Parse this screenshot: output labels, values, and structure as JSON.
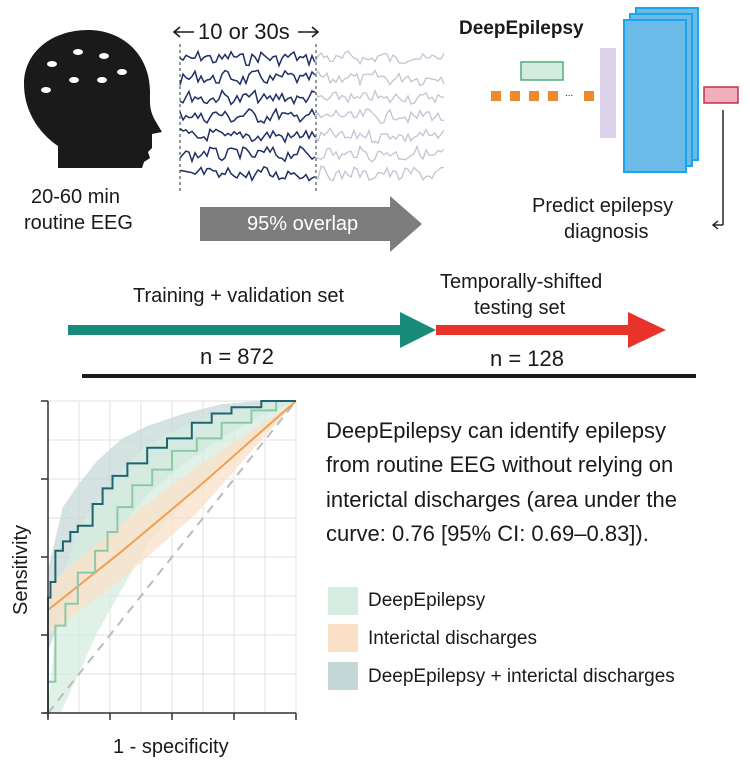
{
  "eeg": {
    "duration_label": "10 or 30s",
    "overlap_label": "95% overlap"
  },
  "head": {
    "caption_line1": "20-60 min",
    "caption_line2": "routine EEG"
  },
  "model": {
    "title": "DeepEpilepsy",
    "ellipsis": "...",
    "output_line1": "Predict epilepsy",
    "output_line2": "diagnosis"
  },
  "datasets": {
    "train_label": "Training + validation set",
    "test_label_line1": "Temporally-shifted",
    "test_label_line2": "testing set",
    "train_n": "n = 872",
    "test_n": "n = 128",
    "train_color": "#178a79",
    "test_color": "#e8332a"
  },
  "summary": {
    "line1": "DeepEpilepsy can identify epilepsy",
    "line2": "from routine EEG without relying on",
    "line3": "interictal discharges (area under the",
    "line4": "curve: 0.76 [95% CI: 0.69–0.83])."
  },
  "chart_data": {
    "type": "line",
    "title": "",
    "xlabel": "1 - specificity",
    "ylabel": "Sensitivity",
    "xlim": [
      0,
      1
    ],
    "ylim": [
      0,
      1
    ],
    "grid": true,
    "legend_position": "right",
    "series": [
      {
        "name": "DeepEpilepsy",
        "color": "#8cc9a6",
        "band_color": "#d5ede0",
        "points": [
          [
            0,
            0
          ],
          [
            0,
            0.1
          ],
          [
            0.03,
            0.1
          ],
          [
            0.03,
            0.28
          ],
          [
            0.07,
            0.28
          ],
          [
            0.07,
            0.35
          ],
          [
            0.12,
            0.35
          ],
          [
            0.12,
            0.45
          ],
          [
            0.19,
            0.45
          ],
          [
            0.19,
            0.52
          ],
          [
            0.24,
            0.52
          ],
          [
            0.24,
            0.58
          ],
          [
            0.28,
            0.58
          ],
          [
            0.28,
            0.66
          ],
          [
            0.34,
            0.66
          ],
          [
            0.34,
            0.73
          ],
          [
            0.42,
            0.73
          ],
          [
            0.42,
            0.78
          ],
          [
            0.5,
            0.78
          ],
          [
            0.5,
            0.84
          ],
          [
            0.6,
            0.84
          ],
          [
            0.6,
            0.88
          ],
          [
            0.7,
            0.88
          ],
          [
            0.7,
            0.93
          ],
          [
            0.82,
            0.93
          ],
          [
            0.82,
            0.97
          ],
          [
            0.92,
            0.97
          ],
          [
            0.92,
            1.0
          ],
          [
            1,
            1
          ]
        ],
        "upper": [
          [
            0,
            0.02
          ],
          [
            0.05,
            0.42
          ],
          [
            0.12,
            0.58
          ],
          [
            0.2,
            0.68
          ],
          [
            0.3,
            0.78
          ],
          [
            0.4,
            0.86
          ],
          [
            0.55,
            0.92
          ],
          [
            0.7,
            0.96
          ],
          [
            0.85,
            0.99
          ],
          [
            1,
            1
          ]
        ],
        "lower": [
          [
            0,
            0
          ],
          [
            0.05,
            0.0
          ],
          [
            0.12,
            0.12
          ],
          [
            0.2,
            0.26
          ],
          [
            0.3,
            0.4
          ],
          [
            0.4,
            0.54
          ],
          [
            0.55,
            0.68
          ],
          [
            0.7,
            0.8
          ],
          [
            0.85,
            0.9
          ],
          [
            1,
            1
          ]
        ]
      },
      {
        "name": "Interictal discharges",
        "color": "#f0a050",
        "band_color": "#fbe0c8",
        "points": [
          [
            0,
            0.33
          ],
          [
            0.3,
            0.52
          ],
          [
            0.6,
            0.72
          ],
          [
            1,
            1
          ]
        ],
        "upper": [
          [
            0,
            0.41
          ],
          [
            0.3,
            0.61
          ],
          [
            0.6,
            0.79
          ],
          [
            1,
            1
          ]
        ],
        "lower": [
          [
            0,
            0.25
          ],
          [
            0.3,
            0.43
          ],
          [
            0.6,
            0.64
          ],
          [
            1,
            1
          ]
        ]
      },
      {
        "name": "DeepEpilepsy + interictal discharges",
        "color": "#1e6470",
        "band_color": "#c5d8d8",
        "points": [
          [
            0,
            0
          ],
          [
            0,
            0.37
          ],
          [
            0.01,
            0.37
          ],
          [
            0.01,
            0.42
          ],
          [
            0.03,
            0.42
          ],
          [
            0.03,
            0.52
          ],
          [
            0.06,
            0.52
          ],
          [
            0.06,
            0.55
          ],
          [
            0.09,
            0.55
          ],
          [
            0.09,
            0.58
          ],
          [
            0.12,
            0.58
          ],
          [
            0.12,
            0.6
          ],
          [
            0.18,
            0.6
          ],
          [
            0.18,
            0.67
          ],
          [
            0.22,
            0.67
          ],
          [
            0.22,
            0.72
          ],
          [
            0.26,
            0.72
          ],
          [
            0.26,
            0.76
          ],
          [
            0.32,
            0.76
          ],
          [
            0.32,
            0.8
          ],
          [
            0.4,
            0.8
          ],
          [
            0.4,
            0.85
          ],
          [
            0.48,
            0.85
          ],
          [
            0.48,
            0.88
          ],
          [
            0.58,
            0.88
          ],
          [
            0.58,
            0.93
          ],
          [
            0.66,
            0.93
          ],
          [
            0.66,
            0.96
          ],
          [
            0.74,
            0.96
          ],
          [
            0.74,
            0.98
          ],
          [
            0.86,
            0.98
          ],
          [
            0.86,
            1.0
          ],
          [
            1,
            1
          ]
        ],
        "upper": [
          [
            0,
            0.46
          ],
          [
            0.06,
            0.66
          ],
          [
            0.12,
            0.73
          ],
          [
            0.2,
            0.81
          ],
          [
            0.3,
            0.88
          ],
          [
            0.4,
            0.92
          ],
          [
            0.55,
            0.96
          ],
          [
            0.7,
            0.99
          ],
          [
            0.85,
            1
          ],
          [
            1,
            1
          ]
        ],
        "lower": [
          [
            0,
            0.2
          ],
          [
            0.06,
            0.32
          ],
          [
            0.12,
            0.4
          ],
          [
            0.2,
            0.5
          ],
          [
            0.3,
            0.6
          ],
          [
            0.4,
            0.7
          ],
          [
            0.55,
            0.8
          ],
          [
            0.7,
            0.88
          ],
          [
            0.85,
            0.95
          ],
          [
            1,
            1
          ]
        ]
      }
    ],
    "reference_line": {
      "style": "dashed",
      "color": "#bbbbbb"
    }
  }
}
